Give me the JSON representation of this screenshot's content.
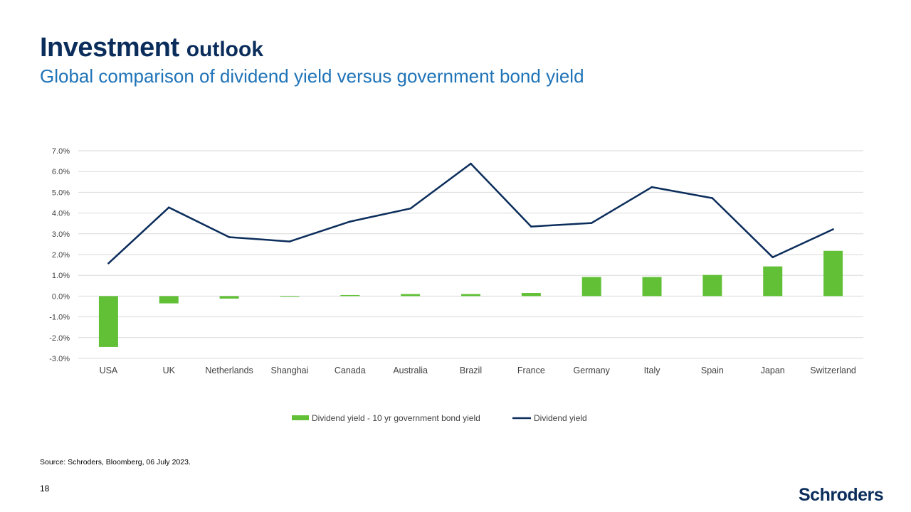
{
  "header": {
    "title_bold": "Investment",
    "title_rest": "outlook",
    "subtitle": "Global comparison of dividend yield versus government bond yield"
  },
  "chart_data": {
    "type": "bar",
    "categories": [
      "USA",
      "UK",
      "Netherlands",
      "Shanghai",
      "Canada",
      "Australia",
      "Brazil",
      "France",
      "Germany",
      "Italy",
      "Spain",
      "Japan",
      "Switzerland"
    ],
    "series": [
      {
        "name": "Dividend yield - 10 yr government bond yield",
        "kind": "bar",
        "color": "#62c037",
        "values": [
          -2.45,
          -0.35,
          -0.12,
          -0.03,
          0.05,
          0.1,
          0.1,
          0.15,
          0.92,
          0.92,
          1.02,
          1.43,
          2.18
        ]
      },
      {
        "name": "Dividend yield",
        "kind": "line",
        "color": "#0b2d5b",
        "values": [
          1.58,
          4.27,
          2.84,
          2.63,
          3.59,
          4.22,
          6.38,
          3.35,
          3.52,
          5.25,
          4.72,
          1.87,
          3.22
        ]
      }
    ],
    "yticks": [
      "7.0%",
      "6.0%",
      "5.0%",
      "4.0%",
      "3.0%",
      "2.0%",
      "1.0%",
      "0.0%",
      "-1.0%",
      "-2.0%",
      "-3.0%"
    ],
    "ylim": [
      -3,
      7
    ],
    "grid": true,
    "legend_position": "bottom"
  },
  "footer": {
    "source": "Source: Schroders, Bloomberg, 06 July 2023.",
    "page_number": "18",
    "logo": "Schroders"
  }
}
